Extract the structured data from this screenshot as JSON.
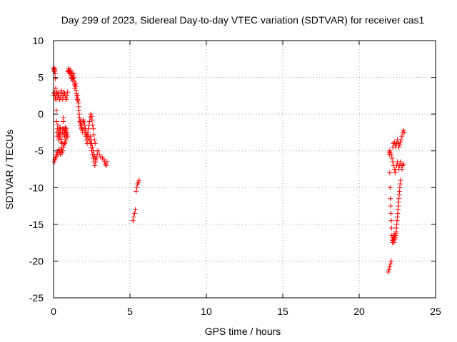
{
  "chart_data": {
    "type": "scatter",
    "title": "Day 299 of 2023, Sidereal Day-to-day VTEC variation (SDTVAR) for receiver cas1",
    "xlabel": "GPS time / hours",
    "ylabel": "SDTVAR / TECUs",
    "xlim": [
      0,
      25
    ],
    "ylim": [
      -25,
      10
    ],
    "xticks": [
      0,
      5,
      10,
      15,
      20,
      25
    ],
    "yticks": [
      -25,
      -20,
      -15,
      -10,
      -5,
      0,
      5,
      10
    ],
    "grid": true,
    "marker": "+",
    "series": [
      {
        "name": "SDTVAR",
        "color": "#ff0000",
        "x": [
          0.0,
          0.02,
          0.04,
          0.06,
          0.08,
          0.1,
          0.12,
          0.14,
          0.16,
          0.18,
          0.2,
          0.22,
          0.24,
          0.26,
          0.28,
          0.3,
          0.32,
          0.34,
          0.36,
          0.38,
          0.4,
          0.42,
          0.44,
          0.46,
          0.48,
          0.5,
          0.52,
          0.54,
          0.56,
          0.58,
          0.6,
          0.62,
          0.64,
          0.66,
          0.68,
          0.7,
          0.72,
          0.74,
          0.76,
          0.78,
          0.8,
          0.82,
          0.84,
          0.86,
          0.88,
          0.9,
          0.05,
          0.08,
          0.12,
          0.16,
          0.2,
          0.24,
          0.28,
          0.32,
          0.36,
          0.4,
          0.44,
          0.48,
          0.52,
          0.56,
          0.6,
          0.64,
          0.68,
          0.72,
          0.76,
          0.8,
          0.84,
          0.0,
          0.03,
          0.06,
          0.09,
          0.12,
          0.15,
          0.18,
          0.21,
          0.24,
          0.27,
          0.3,
          0.33,
          0.36,
          0.4,
          0.44,
          0.48,
          0.52,
          0.56,
          0.6,
          0.64,
          0.68,
          0.72,
          0.76,
          0.8,
          0.84,
          0.88,
          0.92,
          0.95,
          0.98,
          1.0,
          1.02,
          1.04,
          1.06,
          1.08,
          1.1,
          1.12,
          1.14,
          1.16,
          1.18,
          1.2,
          1.22,
          1.24,
          1.26,
          1.28,
          1.3,
          1.32,
          1.34,
          1.36,
          1.38,
          1.4,
          1.42,
          1.44,
          1.46,
          1.48,
          1.5,
          1.52,
          1.54,
          1.56,
          1.58,
          1.6,
          1.62,
          1.64,
          1.66,
          1.68,
          1.7,
          1.72,
          1.74,
          1.76,
          1.78,
          1.8,
          1.82,
          1.84,
          1.86,
          1.88,
          1.9,
          1.92,
          1.96,
          2.0,
          2.04,
          2.08,
          2.12,
          2.16,
          2.2,
          2.24,
          2.28,
          2.32,
          2.36,
          2.4,
          2.44,
          2.48,
          2.52,
          2.56,
          2.6,
          2.64,
          2.68,
          2.72,
          2.0,
          2.05,
          2.1,
          2.15,
          2.2,
          2.25,
          2.3,
          2.35,
          2.4,
          2.45,
          2.5,
          2.55,
          2.6,
          2.65,
          2.7,
          2.75,
          2.8,
          2.85,
          2.9,
          2.4,
          2.45,
          2.5,
          2.55,
          2.6,
          2.65,
          2.7,
          2.75,
          2.9,
          3.0,
          3.1,
          3.2,
          3.3,
          3.35,
          3.4,
          3.45,
          3.5,
          5.2,
          5.25,
          5.3,
          5.35,
          5.4,
          5.45,
          5.5,
          5.55,
          5.6,
          21.9,
          21.95,
          22.0,
          22.05,
          22.1,
          21.95,
          21.98,
          22.0,
          22.02,
          22.04,
          22.06,
          22.08,
          22.1,
          22.12,
          22.14,
          22.16,
          22.18,
          22.2,
          22.22,
          22.24,
          22.26,
          22.28,
          22.3,
          22.32,
          22.34,
          22.36,
          22.38,
          22.4,
          22.42,
          22.44,
          22.46,
          22.48,
          22.5,
          22.52,
          22.54,
          22.56,
          22.58,
          22.6,
          22.62,
          22.64,
          22.66,
          22.68,
          22.7,
          22.0,
          22.05,
          22.1,
          22.15,
          22.2,
          22.25,
          22.3,
          22.35,
          22.4,
          22.45,
          22.5,
          22.55,
          22.6,
          22.65,
          22.7,
          22.75,
          22.8,
          22.85,
          22.9,
          22.2,
          22.25,
          22.3,
          22.35,
          22.4,
          22.45,
          22.5,
          22.55,
          22.6,
          22.65,
          22.7,
          22.75,
          22.8,
          22.85,
          22.9,
          22.95
        ],
        "y": [
          6.2,
          6.0,
          6.3,
          5.8,
          6.1,
          5.5,
          4.8,
          3.5,
          2.0,
          0.5,
          -1.0,
          -2.5,
          -3.0,
          -2.0,
          -1.5,
          -2.5,
          -3.5,
          -3.0,
          -2.5,
          -2.0,
          -2.8,
          -3.2,
          -2.2,
          -1.8,
          -2.6,
          -3.4,
          -3.8,
          -4.5,
          -4.0,
          -2.5,
          -2.0,
          -1.0,
          -0.5,
          -2.0,
          -2.8,
          -2.5,
          -3.0,
          -2.2,
          -1.8,
          -2.0,
          -2.6,
          -2.3,
          -2.0,
          -2.5,
          -2.8,
          -3.0,
          -6.5,
          -6.2,
          -6.0,
          -5.8,
          -5.5,
          -5.2,
          -5.5,
          -5.0,
          -4.8,
          -5.2,
          -5.5,
          -5.0,
          -4.8,
          -5.3,
          -5.0,
          -4.5,
          -4.2,
          -4.0,
          -3.8,
          -3.5,
          -3.2,
          2.5,
          2.8,
          3.0,
          2.5,
          2.2,
          2.0,
          2.5,
          3.0,
          2.8,
          2.2,
          2.5,
          3.0,
          2.5,
          2.0,
          2.2,
          2.8,
          3.2,
          2.5,
          2.0,
          2.5,
          3.0,
          2.8,
          2.5,
          2.2,
          2.0,
          2.5,
          3.0,
          5.8,
          6.0,
          6.2,
          5.9,
          5.7,
          5.5,
          5.8,
          6.0,
          5.6,
          5.2,
          5.0,
          4.8,
          5.2,
          5.5,
          5.0,
          4.5,
          4.8,
          5.2,
          5.5,
          5.0,
          4.5,
          4.0,
          3.5,
          3.8,
          4.2,
          3.8,
          3.2,
          2.8,
          2.5,
          2.2,
          2.0,
          2.5,
          1.8,
          1.5,
          1.0,
          0.5,
          0.0,
          -0.5,
          -1.0,
          -1.5,
          -1.2,
          -0.8,
          -1.5,
          -2.0,
          -1.8,
          -1.5,
          -2.2,
          -2.5,
          -1.0,
          -0.8,
          -1.2,
          -1.5,
          -2.0,
          -2.5,
          -2.8,
          -3.0,
          -2.5,
          -2.0,
          -1.5,
          -1.0,
          -0.5,
          0.0,
          -0.3,
          -0.8,
          -1.5,
          -2.0,
          -2.8,
          -3.5,
          -4.0,
          -2.0,
          -2.5,
          -3.0,
          -3.5,
          -4.0,
          -3.5,
          -3.0,
          -3.5,
          -4.0,
          -4.5,
          -5.0,
          -5.5,
          -6.0,
          -6.5,
          -7.0,
          -6.5,
          -6.0,
          -5.5,
          -5.0,
          -3.0,
          -3.5,
          -4.0,
          -4.5,
          -5.0,
          -5.5,
          -5.8,
          -6.2,
          -5.0,
          -5.5,
          -5.8,
          -6.0,
          -6.2,
          -6.5,
          -6.8,
          -7.0,
          -6.5,
          -14.5,
          -14.0,
          -13.5,
          -13.0,
          -10.5,
          -10.0,
          -9.5,
          -9.3,
          -9.0,
          -21.5,
          -21.2,
          -20.8,
          -20.4,
          -20.0,
          -5.2,
          -5.5,
          -8.0,
          -10.0,
          -11.5,
          -12.5,
          -13.5,
          -14.5,
          -15.5,
          -16.5,
          -17.0,
          -17.5,
          -17.2,
          -16.8,
          -16.5,
          -17.0,
          -17.5,
          -17.0,
          -16.5,
          -16.8,
          -17.0,
          -16.5,
          -16.2,
          -16.0,
          -15.5,
          -15.0,
          -14.5,
          -14.0,
          -13.5,
          -13.0,
          -12.5,
          -12.0,
          -11.5,
          -11.0,
          -10.5,
          -10.0,
          -9.5,
          -9.0,
          -5.0,
          -5.2,
          -5.5,
          -6.0,
          -6.5,
          -7.0,
          -7.5,
          -8.0,
          -7.5,
          -7.0,
          -6.5,
          -7.0,
          -7.5,
          -7.0,
          -6.5,
          -7.0,
          -7.5,
          -7.0,
          -6.8,
          -4.5,
          -4.0,
          -3.8,
          -4.2,
          -4.5,
          -4.0,
          -3.5,
          -4.0,
          -4.5,
          -4.2,
          -3.8,
          -3.5,
          -3.0,
          -2.5,
          -2.2,
          -2.5
        ]
      }
    ]
  }
}
